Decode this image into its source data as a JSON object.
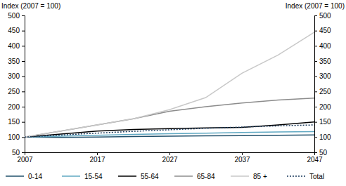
{
  "chart_data": {
    "type": "line",
    "y_label": "Index (2007 = 100)",
    "y2_label": "Index (2007 = 100)",
    "x": [
      2007,
      2012,
      2017,
      2022,
      2027,
      2032,
      2037,
      2042,
      2047
    ],
    "xlim": [
      2007,
      2047
    ],
    "xticks": [
      2007,
      2017,
      2027,
      2037,
      2047
    ],
    "ylim": [
      50,
      500
    ],
    "yticks": [
      50,
      100,
      150,
      200,
      250,
      300,
      350,
      400,
      450,
      500
    ],
    "y2lim": [
      50,
      500
    ],
    "y2ticks": [
      50,
      100,
      150,
      200,
      250,
      300,
      350,
      400,
      450,
      500
    ],
    "grid": false,
    "legend": "bottom",
    "series": [
      {
        "name": "0-14",
        "color": "#21506b",
        "line_style": "solid",
        "values": [
          100,
          99,
          100,
          102,
          103,
          104,
          105,
          106,
          107
        ]
      },
      {
        "name": "15-54",
        "color": "#5fa8c2",
        "line_style": "solid",
        "values": [
          100,
          103,
          106,
          109,
          111,
          113,
          115,
          117,
          118
        ]
      },
      {
        "name": "55-64",
        "color": "#000000",
        "line_style": "solid",
        "values": [
          100,
          110,
          120,
          125,
          128,
          130,
          132,
          140,
          150
        ]
      },
      {
        "name": "65-84",
        "color": "#8c8c8c",
        "line_style": "solid",
        "values": [
          100,
          120,
          140,
          160,
          185,
          200,
          212,
          222,
          228
        ]
      },
      {
        "name": "85 +",
        "color": "#c8c8c8",
        "line_style": "solid",
        "values": [
          100,
          120,
          140,
          160,
          190,
          230,
          310,
          370,
          445
        ]
      },
      {
        "name": "Total",
        "color": "#1a3a5c",
        "line_style": "dotted",
        "values": [
          100,
          107,
          113,
          119,
          124,
          129,
          133,
          137,
          140
        ]
      }
    ]
  }
}
